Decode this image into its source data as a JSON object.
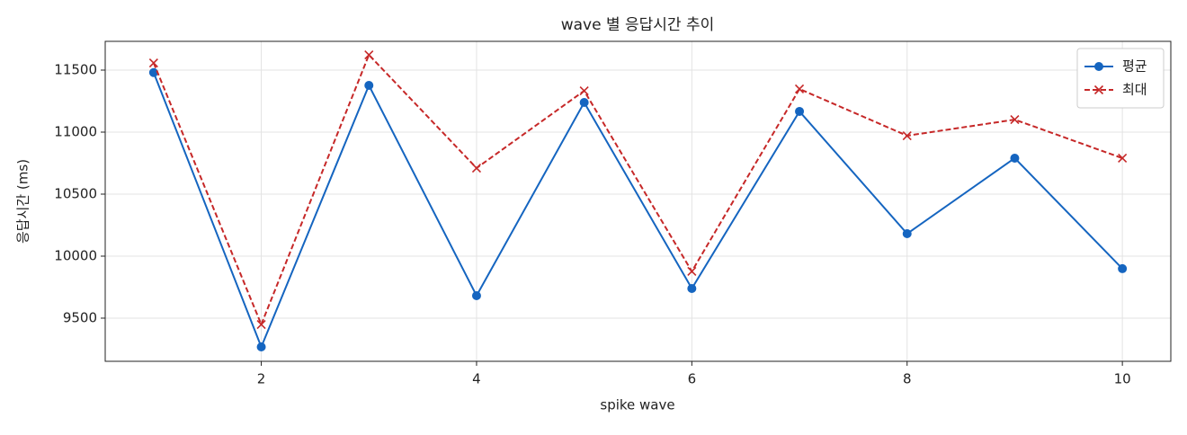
{
  "chart_data": {
    "type": "line",
    "title": "wave 별 응답시간 추이",
    "x_label": "spike wave",
    "y_label": "응답시간 (ms)",
    "x": [
      1,
      2,
      3,
      4,
      5,
      6,
      7,
      8,
      9,
      10
    ],
    "series": [
      {
        "name": "평균",
        "color": "#1565c0",
        "marker": "o",
        "dash": false,
        "values": [
          11480,
          9268,
          11377,
          9681,
          11239,
          9739,
          11167,
          10181,
          10790,
          9899
        ]
      },
      {
        "name": "최대",
        "color": "#c62828",
        "marker": "x",
        "dash": true,
        "values": [
          11558,
          9449,
          11623,
          10710,
          11333,
          9877,
          11348,
          10971,
          11101,
          10790
        ]
      }
    ],
    "xlim": [
      0.55,
      10.45
    ],
    "xticks": [
      2,
      4,
      6,
      8,
      10
    ],
    "ylim": [
      9152,
      11732
    ],
    "yticks": [
      9500,
      10000,
      10500,
      11000,
      11500
    ],
    "grid": true,
    "legend": "upper right"
  }
}
